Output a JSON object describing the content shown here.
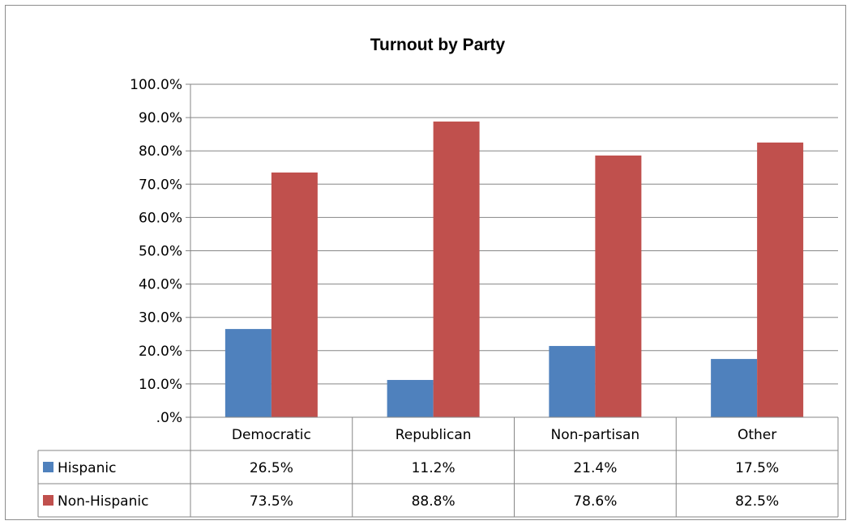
{
  "chart_data": {
    "type": "bar",
    "title": "Turnout by Party",
    "categories": [
      "Democratic",
      "Republican",
      "Non-partisan",
      "Other"
    ],
    "series": [
      {
        "name": "Hispanic",
        "values": [
          26.5,
          11.2,
          21.4,
          17.5
        ],
        "labels": [
          "26.5%",
          "11.2%",
          "21.4%",
          "17.5%"
        ],
        "color": "#4f81bd"
      },
      {
        "name": "Non-Hispanic",
        "values": [
          73.5,
          88.8,
          78.6,
          82.5
        ],
        "labels": [
          "73.5%",
          "88.8%",
          "78.6%",
          "82.5%"
        ],
        "color": "#c0504d"
      }
    ],
    "ylim": [
      0,
      100
    ],
    "y_ticks": [
      0,
      10,
      20,
      30,
      40,
      50,
      60,
      70,
      80,
      90,
      100
    ],
    "y_tick_labels": [
      ".0%",
      "10.0%",
      "20.0%",
      "30.0%",
      "40.0%",
      "50.0%",
      "60.0%",
      "70.0%",
      "80.0%",
      "90.0%",
      "100.0%"
    ],
    "grid": true,
    "data_table": true,
    "legend": "in data table"
  }
}
